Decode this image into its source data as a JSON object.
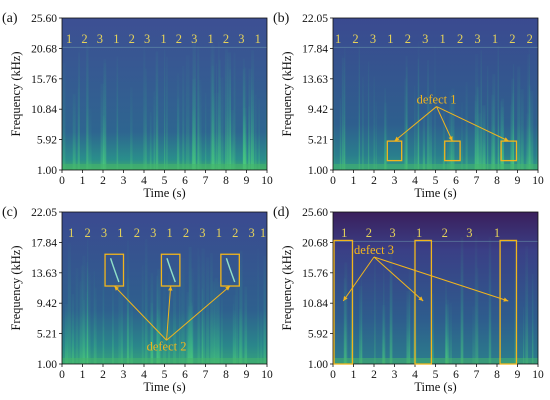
{
  "chart_data": [
    {
      "type": "heatmap",
      "panel_label": "(a)",
      "xlabel": "Time (s)",
      "ylabel": "Frequency (kHz)",
      "xticks": [
        0,
        1,
        2,
        3,
        4,
        5,
        6,
        7,
        8,
        9,
        10
      ],
      "yticks": [
        "1.00",
        "5.92",
        "10.84",
        "15.76",
        "20.68",
        "25.60"
      ],
      "xlim": [
        0,
        10
      ],
      "ylim": [
        1.0,
        25.6
      ],
      "segment_labels": [
        {
          "t": 0.35,
          "label": "1"
        },
        {
          "t": 1.1,
          "label": "2"
        },
        {
          "t": 1.85,
          "label": "3"
        },
        {
          "t": 2.65,
          "label": "1"
        },
        {
          "t": 3.4,
          "label": "2"
        },
        {
          "t": 4.15,
          "label": "3"
        },
        {
          "t": 4.95,
          "label": "1"
        },
        {
          "t": 5.7,
          "label": "2"
        },
        {
          "t": 6.45,
          "label": "3"
        },
        {
          "t": 7.25,
          "label": "1"
        },
        {
          "t": 8.0,
          "label": "2"
        },
        {
          "t": 8.75,
          "label": "3"
        },
        {
          "t": 9.55,
          "label": "1"
        }
      ],
      "defects": []
    },
    {
      "type": "heatmap",
      "panel_label": "(b)",
      "xlabel": "Time (s)",
      "ylabel": "Frequency (kHz)",
      "xticks": [
        0,
        1,
        2,
        3,
        4,
        5,
        6,
        7,
        8,
        9,
        10
      ],
      "yticks": [
        "1.00",
        "5.21",
        "9.42",
        "13.63",
        "17.84",
        "22.05"
      ],
      "xlim": [
        0,
        10
      ],
      "ylim": [
        1.0,
        22.05
      ],
      "segment_labels": [
        {
          "t": 0.25,
          "label": "1"
        },
        {
          "t": 1.1,
          "label": "2"
        },
        {
          "t": 1.95,
          "label": "3"
        },
        {
          "t": 2.8,
          "label": "1"
        },
        {
          "t": 3.65,
          "label": "2"
        },
        {
          "t": 4.5,
          "label": "3"
        },
        {
          "t": 5.35,
          "label": "1"
        },
        {
          "t": 6.2,
          "label": "2"
        },
        {
          "t": 7.05,
          "label": "3"
        },
        {
          "t": 7.9,
          "label": "1"
        },
        {
          "t": 8.75,
          "label": "2"
        },
        {
          "t": 9.6,
          "label": "2"
        }
      ],
      "defects": [
        {
          "label": "defect 1",
          "label_t": 5.05,
          "label_f": 10.2,
          "boxes": [
            {
              "t0": 2.65,
              "t1": 3.35,
              "f0": 2.3,
              "f1": 5.0
            },
            {
              "t0": 5.45,
              "t1": 6.2,
              "f0": 2.3,
              "f1": 5.0
            },
            {
              "t0": 8.2,
              "t1": 8.95,
              "f0": 2.3,
              "f1": 5.0
            }
          ]
        }
      ]
    },
    {
      "type": "heatmap",
      "panel_label": "(c)",
      "xlabel": "Time (s)",
      "ylabel": "Frequency (kHz)",
      "xticks": [
        0,
        1,
        2,
        3,
        4,
        5,
        6,
        7,
        8,
        9,
        10
      ],
      "yticks": [
        "1.00",
        "5.21",
        "9.42",
        "13.63",
        "17.84",
        "22.05"
      ],
      "xlim": [
        0,
        10
      ],
      "ylim": [
        1.0,
        22.05
      ],
      "segment_labels": [
        {
          "t": 0.45,
          "label": "1"
        },
        {
          "t": 1.25,
          "label": "2"
        },
        {
          "t": 2.05,
          "label": "3"
        },
        {
          "t": 2.85,
          "label": "1"
        },
        {
          "t": 3.65,
          "label": "2"
        },
        {
          "t": 4.45,
          "label": "3"
        },
        {
          "t": 5.25,
          "label": "1"
        },
        {
          "t": 6.05,
          "label": "2"
        },
        {
          "t": 6.85,
          "label": "3"
        },
        {
          "t": 7.65,
          "label": "1"
        },
        {
          "t": 8.45,
          "label": "2"
        },
        {
          "t": 9.25,
          "label": "3"
        },
        {
          "t": 10.05,
          "label": "1"
        }
      ],
      "defects": [
        {
          "label": "defect 2",
          "label_t": 5.1,
          "label_f": 2.9,
          "boxes": [
            {
              "t0": 2.1,
              "t1": 3.0,
              "f0": 11.8,
              "f1": 16.2
            },
            {
              "t0": 4.85,
              "t1": 5.75,
              "f0": 11.8,
              "f1": 16.2
            },
            {
              "t0": 7.75,
              "t1": 8.65,
              "f0": 11.8,
              "f1": 16.2
            }
          ]
        }
      ]
    },
    {
      "type": "heatmap",
      "panel_label": "(d)",
      "xlabel": "Time (s)",
      "ylabel": "Frequency (kHz)",
      "xticks": [
        0,
        1,
        2,
        3,
        4,
        5,
        6,
        7,
        8,
        9,
        10
      ],
      "yticks": [
        "1.00",
        "5.92",
        "10.84",
        "15.76",
        "20.68",
        "25.60"
      ],
      "xlim": [
        0,
        10
      ],
      "ylim": [
        1.0,
        25.6
      ],
      "segment_labels": [
        {
          "t": 0.55,
          "label": "1"
        },
        {
          "t": 1.75,
          "label": "2"
        },
        {
          "t": 2.9,
          "label": "3"
        },
        {
          "t": 4.2,
          "label": "1"
        },
        {
          "t": 5.45,
          "label": "2"
        },
        {
          "t": 6.65,
          "label": "3"
        },
        {
          "t": 8.0,
          "label": "1"
        }
      ],
      "defects": [
        {
          "label": "defect 3",
          "label_t": 2.0,
          "label_f": 18.8,
          "boxes": [
            {
              "t0": 0.05,
              "t1": 0.95,
              "f0": 1.0,
              "f1": 21.0
            },
            {
              "t0": 4.0,
              "t1": 4.8,
              "f0": 1.0,
              "f1": 21.0
            },
            {
              "t0": 8.15,
              "t1": 8.95,
              "f0": 1.0,
              "f1": 21.0
            }
          ]
        }
      ]
    }
  ],
  "colors": {
    "annotation": "#f2b51c",
    "segment_label": "#e6d35a",
    "spectrogram_low": "#3b4d92",
    "spectrogram_high": "#2fa48a"
  }
}
